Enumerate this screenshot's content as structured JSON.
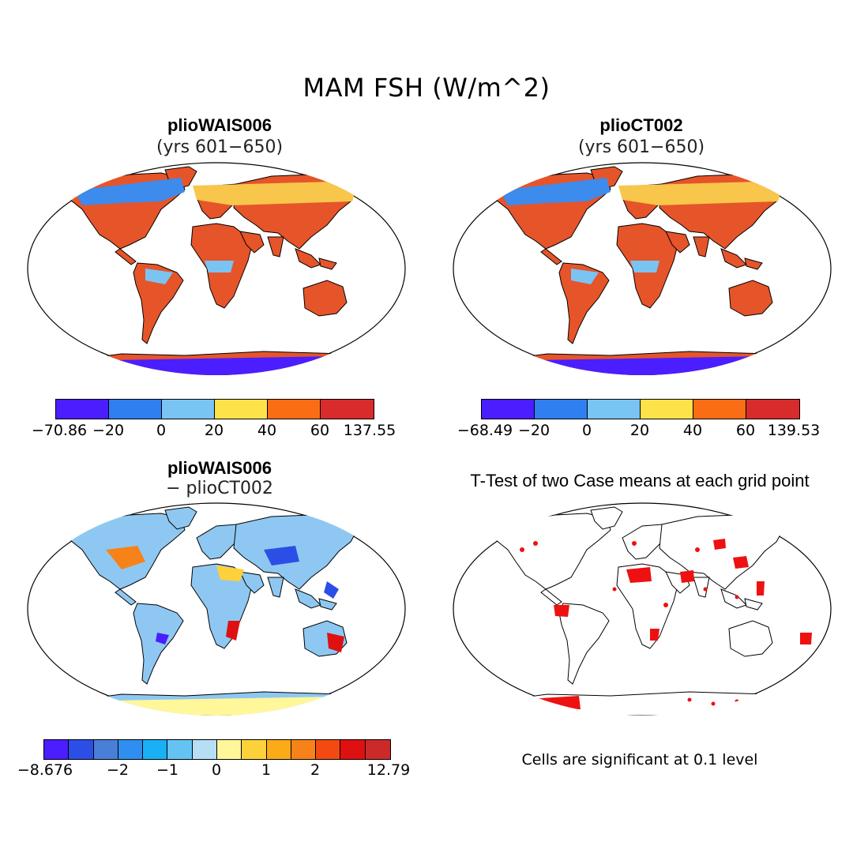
{
  "figure": {
    "title": "MAM FSH (W/m^2)"
  },
  "panels": [
    {
      "id": "p1",
      "title": "plioWAIS006",
      "subtitle": "(yrs 601−650)"
    },
    {
      "id": "p2",
      "title": "plioCT002",
      "subtitle": "(yrs 601−650)"
    },
    {
      "id": "p3",
      "title": "plioWAIS006",
      "subtitle": "− plioCT002"
    },
    {
      "id": "p4",
      "title": "T-Test of two Case means at each grid point",
      "subtitle": ""
    }
  ],
  "colorbars": {
    "cb1": {
      "colors": [
        "#4b1eff",
        "#2f7ff0",
        "#7ac4f3",
        "#fde24a",
        "#fb6d14",
        "#d82b2b"
      ],
      "ticks": [
        "−70.86",
        "−20",
        "0",
        "20",
        "40",
        "60",
        "137.55"
      ]
    },
    "cb2": {
      "colors": [
        "#4b1eff",
        "#2f7ff0",
        "#7ac4f3",
        "#fde24a",
        "#fb6d14",
        "#d82b2b"
      ],
      "ticks": [
        "−68.49",
        "−20",
        "0",
        "20",
        "40",
        "60",
        "139.53"
      ]
    },
    "cb3": {
      "colors": [
        "#4b1eff",
        "#2b4fe6",
        "#4a7fd8",
        "#2f8ff0",
        "#1ab0f5",
        "#65c3f3",
        "#b6def5",
        "#fff79a",
        "#fdd13a",
        "#fbaa18",
        "#f7821a",
        "#f34a12",
        "#e01010",
        "#cc2a2a"
      ],
      "ticks": [
        "−8.676",
        "−2",
        "−1",
        "0",
        "1",
        "2",
        "12.79"
      ]
    }
  },
  "note": "Cells are significant at 0.1 level"
}
